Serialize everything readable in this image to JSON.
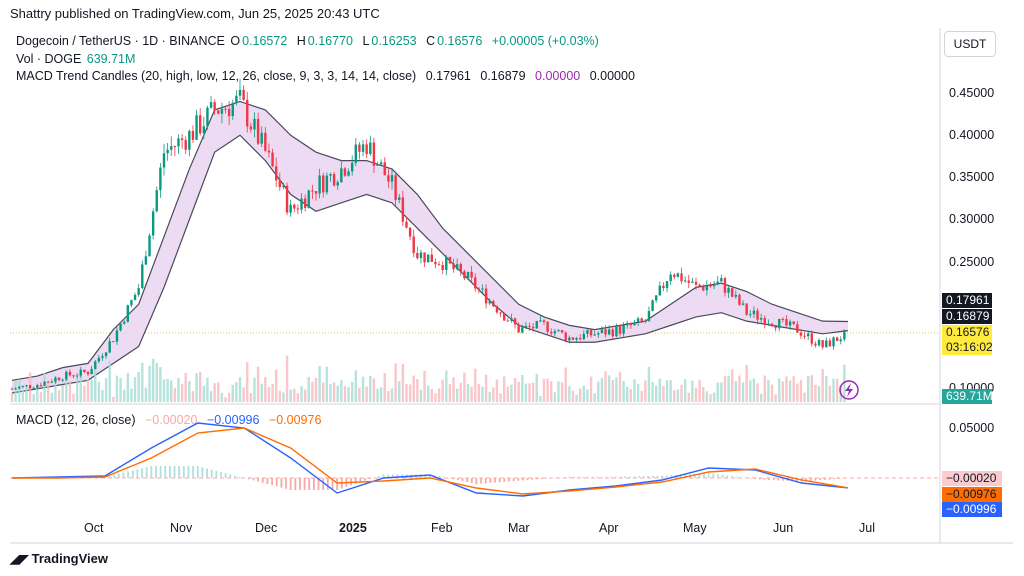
{
  "header": {
    "publish_line": "Shattry published on TradingView.com, Jun 25, 2025 20:43 UTC",
    "currency_button": "USDT",
    "footer_logo": "TradingView"
  },
  "legend": {
    "symbol": "Dogecoin / TetherUS · 1D · BINANCE",
    "o_label": "O",
    "o_value": "0.16572",
    "h_label": "H",
    "h_value": "0.16770",
    "l_label": "L",
    "l_value": "0.16253",
    "c_label": "C",
    "c_value": "0.16576",
    "change": "+0.00005 (+0.03%)",
    "vol_label": "Vol · DOGE",
    "vol_value": "639.71M",
    "macd_trend_label": "MACD Trend Candles (20, high, low, 12, 26, close, 9, 3, 3, 14, 14, close)",
    "macd_trend_v1": "0.17961",
    "macd_trend_v2": "0.16879",
    "macd_trend_v3": "0.00000",
    "macd_trend_v4": "0.00000",
    "macd_label": "MACD (12, 26, close)",
    "macd_hist": "−0.00020",
    "macd_line": "−0.00996",
    "macd_signal": "−0.00976"
  },
  "price_tags": {
    "upper_band": "0.17961",
    "lower_band": "0.16879",
    "last_price": "0.16576",
    "countdown": "03:16:02",
    "volume": "639.71M",
    "macd_hist": "−0.00020",
    "macd_signal": "−0.00976",
    "macd_line": "−0.00996"
  },
  "colors": {
    "up": "#089981",
    "down": "#f23645",
    "band_fill": "#e9d5f0",
    "band_line": "#4a4a5a",
    "macd_line": "#2962ff",
    "signal_line": "#ff6d00",
    "last_price": "#ffeb3b"
  },
  "chart_data": [
    {
      "type": "line",
      "title": "Dogecoin / TetherUS · 1D · BINANCE",
      "x_tick_labels": [
        "Oct",
        "Nov",
        "Dec",
        "2025",
        "Feb",
        "Mar",
        "Apr",
        "May",
        "Jun",
        "Jul"
      ],
      "y_tick_labels": [
        "0.45000",
        "0.40000",
        "0.35000",
        "0.30000",
        "0.25000",
        "0.10000"
      ],
      "ylim": [
        0.1,
        0.48
      ],
      "x": [
        "Sep 1",
        "Sep 15",
        "Oct 1",
        "Oct 15",
        "Nov 1",
        "Nov 8",
        "Nov 12",
        "Nov 20",
        "Nov 29",
        "Dec 8",
        "Dec 15",
        "Dec 22",
        "Jan 1",
        "Jan 10",
        "Jan 18",
        "Jan 25",
        "Feb 3",
        "Feb 10",
        "Feb 20",
        "Feb 28",
        "Mar 10",
        "Mar 20",
        "Apr 1",
        "Apr 10",
        "Apr 20",
        "May 1",
        "May 10",
        "May 15",
        "May 23",
        "Jun 1",
        "Jun 10",
        "Jun 17",
        "Jun 22",
        "Jun 25"
      ],
      "series": [
        {
          "values": [
            0.1,
            0.105,
            0.115,
            0.12,
            0.16,
            0.22,
            0.38,
            0.4,
            0.43,
            0.44,
            0.38,
            0.31,
            0.34,
            0.36,
            0.39,
            0.34,
            0.26,
            0.25,
            0.23,
            0.2,
            0.17,
            0.175,
            0.16,
            0.165,
            0.17,
            0.18,
            0.24,
            0.22,
            0.225,
            0.19,
            0.18,
            0.17,
            0.15,
            0.16576
          ]
        }
      ],
      "bands": {
        "upper": [
          0.11,
          0.115,
          0.125,
          0.13,
          0.17,
          0.2,
          0.28,
          0.36,
          0.43,
          0.44,
          0.43,
          0.4,
          0.38,
          0.37,
          0.37,
          0.36,
          0.33,
          0.29,
          0.26,
          0.23,
          0.2,
          0.185,
          0.175,
          0.17,
          0.175,
          0.18,
          0.2,
          0.22,
          0.225,
          0.215,
          0.2,
          0.19,
          0.18,
          0.17961
        ],
        "lower": [
          0.095,
          0.1,
          0.105,
          0.11,
          0.13,
          0.15,
          0.22,
          0.3,
          0.38,
          0.4,
          0.37,
          0.33,
          0.31,
          0.32,
          0.33,
          0.32,
          0.29,
          0.26,
          0.23,
          0.2,
          0.175,
          0.165,
          0.155,
          0.155,
          0.16,
          0.165,
          0.175,
          0.185,
          0.19,
          0.18,
          0.175,
          0.17,
          0.165,
          0.16879
        ]
      },
      "volume_last": "639.71M"
    },
    {
      "type": "line",
      "title": "MACD (12, 26, close)",
      "y_tick_labels": [
        "0.05000"
      ],
      "ylim": [
        -0.035,
        0.065
      ],
      "x": [
        "Sep 1",
        "Oct 1",
        "Nov 1",
        "Nov 15",
        "Nov 29",
        "Dec 8",
        "Dec 20",
        "Jan 1",
        "Jan 15",
        "Jan 25",
        "Feb 10",
        "Mar 1",
        "Mar 20",
        "Apr 10",
        "May 1",
        "May 15",
        "May 25",
        "Jun 10",
        "Jun 25"
      ],
      "series": [
        {
          "values": [
            0.0,
            0.001,
            0.002,
            0.03,
            0.055,
            0.05,
            0.02,
            -0.015,
            0.0,
            0.003,
            -0.015,
            -0.018,
            -0.012,
            -0.008,
            -0.002,
            0.01,
            0.008,
            -0.005,
            -0.00996
          ]
        },
        {
          "values": [
            0.0,
            0.0,
            0.001,
            0.02,
            0.045,
            0.05,
            0.03,
            -0.005,
            -0.003,
            0.0,
            -0.01,
            -0.016,
            -0.013,
            -0.009,
            -0.004,
            0.006,
            0.009,
            -0.002,
            -0.00976
          ]
        }
      ],
      "histogram_last": -0.0002
    }
  ]
}
